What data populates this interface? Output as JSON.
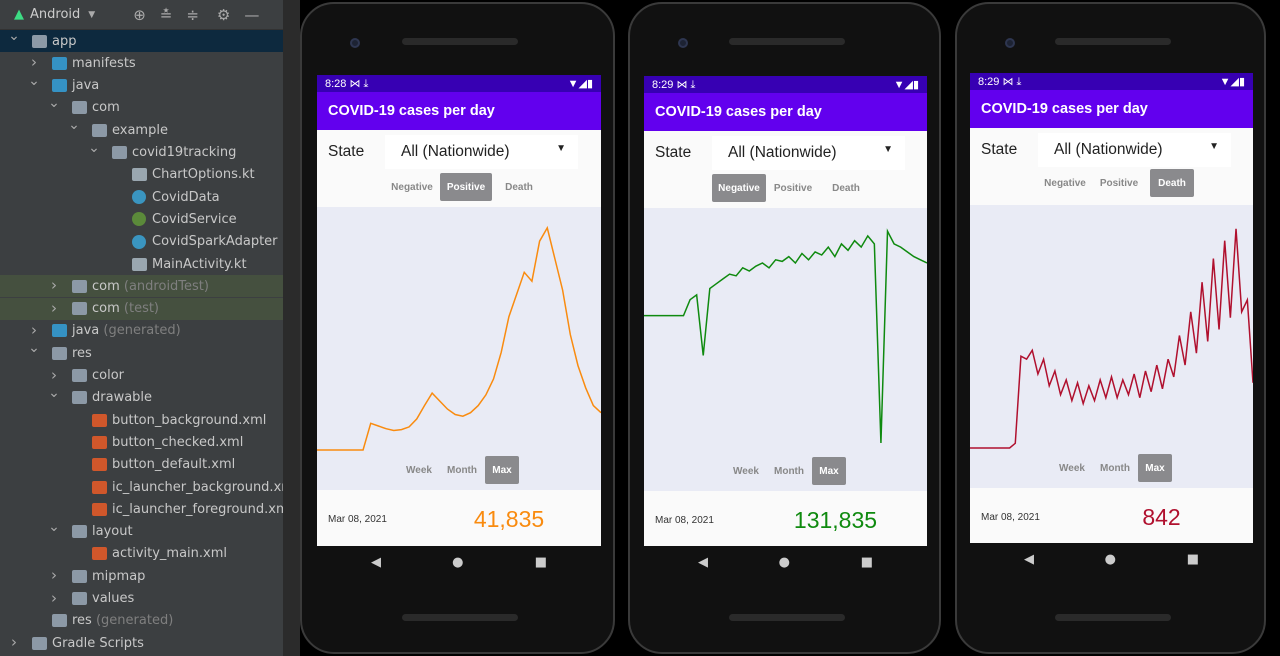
{
  "ide": {
    "view_label": "Android",
    "toolbar_icons": [
      "locate-icon",
      "expand-all-icon",
      "collapse-all-icon",
      "gear-icon",
      "minimize-icon"
    ],
    "tree": [
      {
        "label": "app",
        "level": 0,
        "expanded": true,
        "icon": "module",
        "selected": true
      },
      {
        "label": "manifests",
        "level": 1,
        "expanded": false,
        "icon": "folder"
      },
      {
        "label": "java",
        "level": 1,
        "expanded": true,
        "icon": "folder"
      },
      {
        "label": "com",
        "level": 2,
        "expanded": true,
        "icon": "package"
      },
      {
        "label": "example",
        "level": 3,
        "expanded": true,
        "icon": "package"
      },
      {
        "label": "covid19tracking",
        "level": 4,
        "expanded": true,
        "icon": "package"
      },
      {
        "label": "ChartOptions.kt",
        "level": 5,
        "icon": "kotlin-file"
      },
      {
        "label": "CovidData",
        "level": 5,
        "icon": "kotlin-class"
      },
      {
        "label": "CovidService",
        "level": 5,
        "icon": "kotlin-interface"
      },
      {
        "label": "CovidSparkAdapter",
        "level": 5,
        "icon": "kotlin-class"
      },
      {
        "label": "MainActivity.kt",
        "level": 5,
        "icon": "kotlin-file"
      },
      {
        "label": "com",
        "suffix": " (androidTest)",
        "level": 2,
        "expanded": false,
        "icon": "package",
        "test": true
      },
      {
        "label": "com",
        "suffix": " (test)",
        "level": 2,
        "expanded": false,
        "icon": "package",
        "test": true
      },
      {
        "label": "java",
        "suffix": " (generated)",
        "level": 1,
        "expanded": false,
        "icon": "folder-generated"
      },
      {
        "label": "res",
        "level": 1,
        "expanded": true,
        "icon": "folder-res"
      },
      {
        "label": "color",
        "level": 2,
        "expanded": false,
        "icon": "package"
      },
      {
        "label": "drawable",
        "level": 2,
        "expanded": true,
        "icon": "package"
      },
      {
        "label": "button_background.xml",
        "level": 3,
        "icon": "xml-file"
      },
      {
        "label": "button_checked.xml",
        "level": 3,
        "icon": "xml-file"
      },
      {
        "label": "button_default.xml",
        "level": 3,
        "icon": "xml-file"
      },
      {
        "label": "ic_launcher_background.xml",
        "level": 3,
        "icon": "xml-file"
      },
      {
        "label": "ic_launcher_foreground.xml",
        "suffix": " (",
        "level": 3,
        "icon": "xml-file"
      },
      {
        "label": "layout",
        "level": 2,
        "expanded": true,
        "icon": "package"
      },
      {
        "label": "activity_main.xml",
        "level": 3,
        "icon": "xml-file"
      },
      {
        "label": "mipmap",
        "level": 2,
        "expanded": false,
        "icon": "package"
      },
      {
        "label": "values",
        "level": 2,
        "expanded": false,
        "icon": "package"
      },
      {
        "label": "res",
        "suffix": " (generated)",
        "level": 1,
        "icon": "folder-res"
      },
      {
        "label": "Gradle Scripts",
        "level": 0,
        "expanded": false,
        "icon": "gradle"
      }
    ]
  },
  "colors": {
    "status_bar": "#3700b3",
    "app_bar": "#6200ee",
    "chart_bg": "#e9ebf5",
    "segment_selected": "#8a8a8d"
  },
  "phones": [
    {
      "time": "8:28",
      "title": "COVID-19 cases per day",
      "state_label": "State",
      "state_value": "All (Nationwide)",
      "metrics": [
        "Negative",
        "Positive",
        "Death"
      ],
      "selected_metric": "Positive",
      "ranges": [
        "Week",
        "Month",
        "Max"
      ],
      "selected_range": "Max",
      "date": "Mar 08, 2021",
      "value": "41,835",
      "color": "#f98b0f"
    },
    {
      "time": "8:29",
      "title": "COVID-19 cases per day",
      "state_label": "State",
      "state_value": "All (Nationwide)",
      "metrics": [
        "Negative",
        "Positive",
        "Death"
      ],
      "selected_metric": "Negative",
      "ranges": [
        "Week",
        "Month",
        "Max"
      ],
      "selected_range": "Max",
      "date": "Mar 08, 2021",
      "value": "131,835",
      "color": "#0f8a0f"
    },
    {
      "time": "8:29",
      "title": "COVID-19 cases per day",
      "state_label": "State",
      "state_value": "All (Nationwide)",
      "metrics": [
        "Negative",
        "Positive",
        "Death"
      ],
      "selected_metric": "Death",
      "ranges": [
        "Week",
        "Month",
        "Max"
      ],
      "selected_range": "Max",
      "date": "Mar 08, 2021",
      "value": "842",
      "color": "#b0102e"
    }
  ],
  "chart_data": [
    {
      "type": "line",
      "series": [
        {
          "values": [
            0,
            0,
            0,
            0,
            0,
            0,
            0,
            30,
            27,
            24,
            22,
            23,
            26,
            35,
            50,
            64,
            55,
            46,
            40,
            38,
            42,
            50,
            62,
            80,
            110,
            150,
            175,
            200,
            190,
            235,
            250,
            215,
            180,
            130,
            95,
            70,
            50,
            42
          ]
        }
      ],
      "ylim": [
        0,
        260
      ]
    },
    {
      "type": "line",
      "series": [
        {
          "values": [
            850,
            850,
            850,
            850,
            850,
            850,
            850,
            950,
            980,
            600,
            1020,
            1050,
            1080,
            1110,
            1100,
            1150,
            1130,
            1160,
            1180,
            1150,
            1200,
            1190,
            1220,
            1180,
            1240,
            1200,
            1250,
            1230,
            1280,
            1220,
            1300,
            1260,
            1320,
            1280,
            1350,
            1300,
            50,
            1380,
            1300,
            1280,
            1250,
            1220,
            1200,
            1180
          ]
        }
      ],
      "ylim": [
        0,
        1450
      ]
    },
    {
      "type": "line",
      "series": [
        {
          "values": [
            0,
            0,
            0,
            0,
            0,
            0,
            0,
            0,
            80,
            1550,
            1500,
            1650,
            1250,
            1500,
            1050,
            1300,
            900,
            1150,
            800,
            1100,
            750,
            1050,
            800,
            1150,
            850,
            1200,
            850,
            1150,
            900,
            1250,
            850,
            1300,
            950,
            1400,
            1000,
            1500,
            1200,
            1900,
            1400,
            2300,
            1600,
            2800,
            1800,
            3200,
            2000,
            3500,
            2200,
            3700,
            2300,
            2500,
            1100
          ]
        }
      ],
      "ylim": [
        0,
        3900
      ]
    }
  ]
}
